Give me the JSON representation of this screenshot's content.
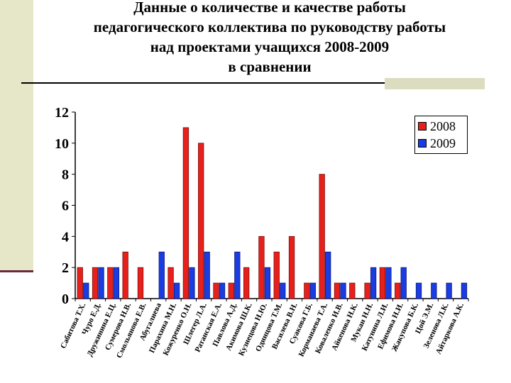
{
  "slide": {
    "title_lines": [
      "Данные о количестве и качестве работы",
      "педагогического коллектива по руководству работы",
      "над проектами учащихся 2008-2009",
      "в сравнении"
    ]
  },
  "colors": {
    "series_2008": "#e8201c",
    "series_2009": "#1a3ce0"
  },
  "chart_data": {
    "type": "bar",
    "categories": [
      "Сабитова Т.Х.",
      "Чуро Е.Д.",
      "Дружинина Е.Ц.",
      "Сумерова Н.В.",
      "Смольянова Е.В.",
      "Абугалиева",
      "Парахина М.Н.",
      "Кожуренко О.Н.",
      "Шлегер Л.А.",
      "Ратанская Е.А.",
      "Павлова А.Д.",
      "Акимова Ш.К.",
      "Кузнецова Н.Ю.",
      "Одинцова Т.М.",
      "Василева В.Н.",
      "Суакова Г.Б.",
      "Корманаева Т.А.",
      "Коваленко И.В.",
      "Айкенова Н.К.",
      "Мукан Н.Н.",
      "Катунина Л.И.",
      "Ефимова Н.И.",
      "Жакупова Б.К.",
      "Цой Э.М.",
      "Зеленова Л.К.",
      "Айтаркова А.К."
    ],
    "series": [
      {
        "name": "2008",
        "values": [
          2,
          2,
          2,
          3,
          2,
          0,
          2,
          11,
          10,
          1,
          1,
          2,
          4,
          3,
          4,
          1,
          8,
          1,
          1,
          1,
          2,
          1,
          0,
          0,
          0,
          0
        ]
      },
      {
        "name": "2009",
        "values": [
          1,
          2,
          2,
          0,
          0,
          3,
          1,
          2,
          3,
          1,
          3,
          0,
          2,
          1,
          0,
          1,
          3,
          1,
          0,
          2,
          2,
          2,
          1,
          1,
          1,
          1
        ]
      }
    ],
    "ylim": [
      0,
      12
    ],
    "yticks": [
      0,
      2,
      4,
      6,
      8,
      10,
      12
    ],
    "grid": false,
    "legend": "top-right",
    "xlabel": "",
    "ylabel": ""
  }
}
